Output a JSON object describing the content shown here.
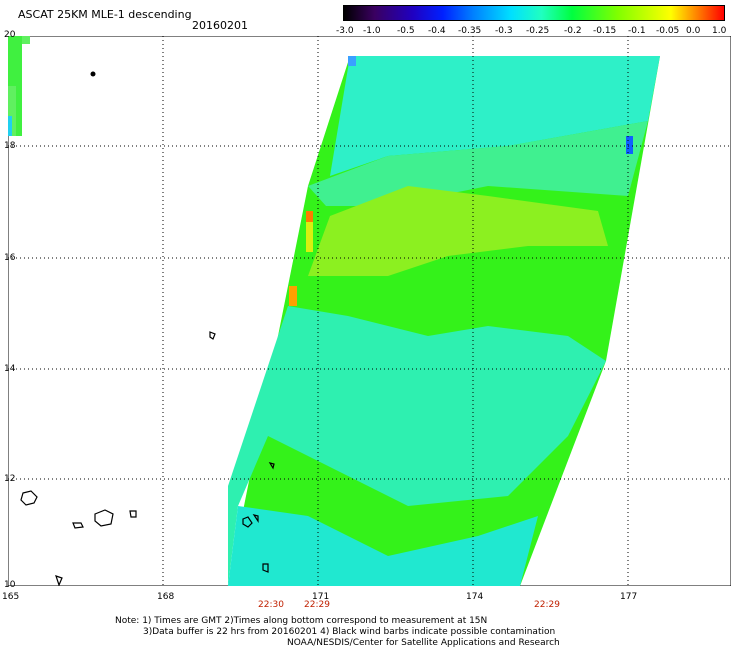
{
  "header": {
    "title": "ASCAT 25KM MLE-1 descending",
    "date": "20160201"
  },
  "colorbar": {
    "ticks": [
      "-3.0",
      "-1.0",
      "-0.5",
      "-0.4",
      "-0.35",
      "-0.3",
      "-0.25",
      "-0.2",
      "-0.15",
      "-0.1",
      "-0.05",
      "0.0",
      "1.0"
    ],
    "colors": [
      "#000000",
      "#3a0060",
      "#2000c0",
      "#0020ff",
      "#0080ff",
      "#00e0ff",
      "#20ffc0",
      "#00ff40",
      "#80ff00",
      "#ffff00",
      "#ff8000",
      "#ff0000"
    ]
  },
  "axes": {
    "lat_labels": [
      "20",
      "18",
      "16",
      "14",
      "12",
      "10"
    ],
    "lon_labels": [
      "165",
      "168",
      "171",
      "174",
      "177"
    ]
  },
  "times": [
    "22:30",
    "22:29",
    "22:29"
  ],
  "notes": {
    "line1": "Note: 1) Times are GMT 2)Times along bottom correspond to measurement at 15N",
    "line2": "3)Data buffer is 22 hrs from 20160201 4) Black wind barbs indicate possible contamination",
    "line3": "NOAA/NESDIS/Center for Satellite Applications and Research"
  }
}
